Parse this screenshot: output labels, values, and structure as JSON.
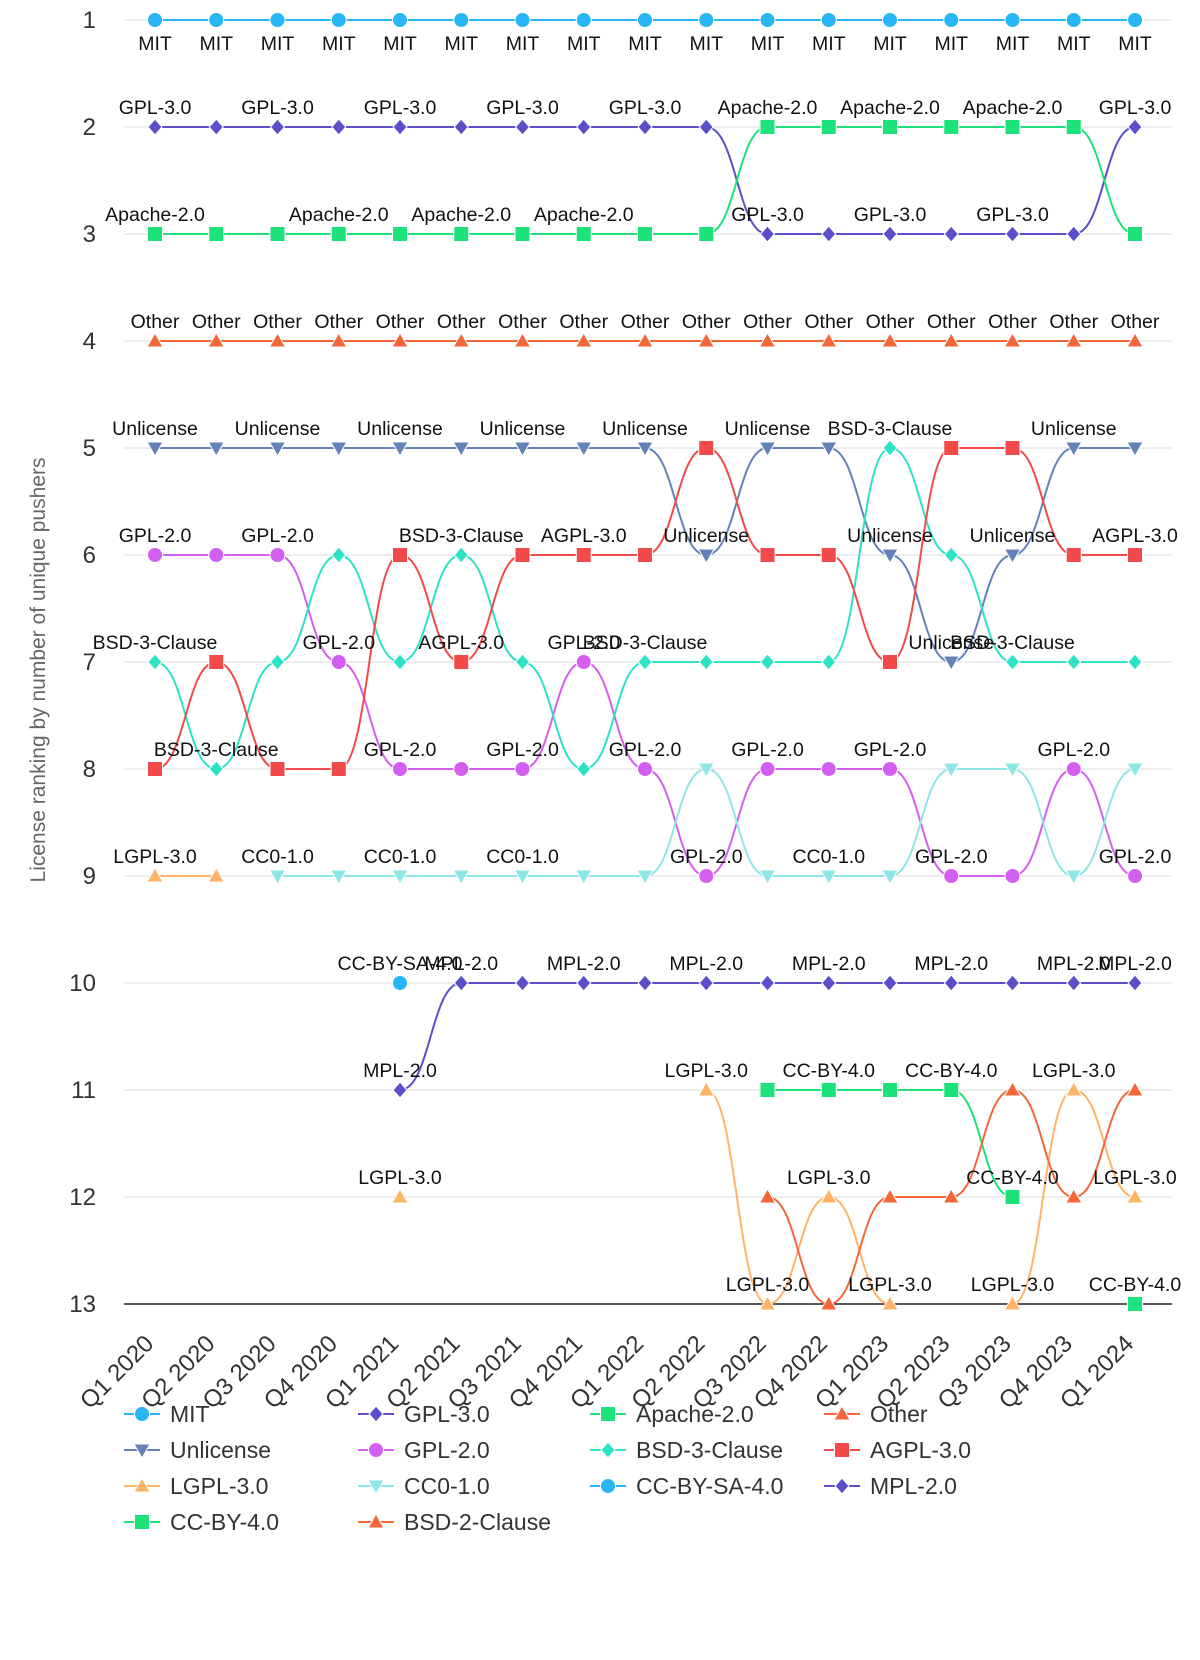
{
  "chart_data": {
    "type": "line",
    "subtype": "bump-chart",
    "title": "",
    "xlabel": "",
    "ylabel": "License ranking by number of unique pushers",
    "categories": [
      "Q1 2020",
      "Q2 2020",
      "Q3 2020",
      "Q4 2020",
      "Q1 2021",
      "Q2 2021",
      "Q3 2021",
      "Q4 2021",
      "Q1 2022",
      "Q2 2022",
      "Q3 2022",
      "Q4 2022",
      "Q1 2023",
      "Q2 2023",
      "Q3 2023",
      "Q4 2023",
      "Q1 2024"
    ],
    "y_ticks": [
      1,
      2,
      3,
      4,
      5,
      6,
      7,
      8,
      9,
      10,
      11,
      12,
      13
    ],
    "ylim": [
      1,
      13
    ],
    "y_reversed": true,
    "grid": true,
    "legend_position": "bottom",
    "series": [
      {
        "name": "MIT",
        "color": "#29b6f6",
        "marker": "circle",
        "values": [
          1,
          1,
          1,
          1,
          1,
          1,
          1,
          1,
          1,
          1,
          1,
          1,
          1,
          1,
          1,
          1,
          1
        ],
        "labels": [
          "MIT",
          "MIT",
          "MIT",
          "MIT",
          "MIT",
          "MIT",
          "MIT",
          "MIT",
          "MIT",
          "MIT",
          "MIT",
          "MIT",
          "MIT",
          "MIT",
          "MIT",
          "MIT",
          "MIT"
        ],
        "label_pos": "below"
      },
      {
        "name": "GPL-3.0",
        "color": "#5b4fc9",
        "marker": "diamond",
        "values": [
          2,
          2,
          2,
          2,
          2,
          2,
          2,
          2,
          2,
          2,
          3,
          3,
          3,
          3,
          3,
          3,
          2
        ],
        "labels": [
          "GPL-3.0",
          "",
          "GPL-3.0",
          "",
          "GPL-3.0",
          "",
          "GPL-3.0",
          "",
          "GPL-3.0",
          "",
          "GPL-3.0",
          "",
          "GPL-3.0",
          "",
          "GPL-3.0",
          "",
          "GPL-3.0"
        ],
        "label_pos": "above"
      },
      {
        "name": "Apache-2.0",
        "color": "#1de27a",
        "marker": "square",
        "values": [
          3,
          3,
          3,
          3,
          3,
          3,
          3,
          3,
          3,
          3,
          2,
          2,
          2,
          2,
          2,
          2,
          3
        ],
        "labels": [
          "Apache-2.0",
          "",
          "",
          "Apache-2.0",
          "",
          "Apache-2.0",
          "",
          "Apache-2.0",
          "",
          "",
          "Apache-2.0",
          "",
          "Apache-2.0",
          "",
          "Apache-2.0",
          "",
          ""
        ],
        "label_pos": "above"
      },
      {
        "name": "Other",
        "color": "#f4673a",
        "marker": "triangle",
        "values": [
          4,
          4,
          4,
          4,
          4,
          4,
          4,
          4,
          4,
          4,
          4,
          4,
          4,
          4,
          4,
          4,
          4
        ],
        "labels": [
          "Other",
          "Other",
          "Other",
          "Other",
          "Other",
          "Other",
          "Other",
          "Other",
          "Other",
          "Other",
          "Other",
          "Other",
          "Other",
          "Other",
          "Other",
          "Other",
          "Other"
        ],
        "label_pos": "above"
      },
      {
        "name": "Unlicense",
        "color": "#6482b8",
        "marker": "triangle-down",
        "values": [
          5,
          5,
          5,
          5,
          5,
          5,
          5,
          5,
          5,
          6,
          5,
          5,
          6,
          7,
          6,
          5,
          5
        ],
        "labels": [
          "Unlicense",
          "",
          "Unlicense",
          "",
          "Unlicense",
          "",
          "Unlicense",
          "",
          "Unlicense",
          "Unlicense",
          "Unlicense",
          "",
          "Unlicense",
          "Unlicense",
          "Unlicense",
          "Unlicense",
          ""
        ],
        "label_pos": "above"
      },
      {
        "name": "GPL-2.0",
        "color": "#d35ff0",
        "marker": "circle",
        "values": [
          6,
          6,
          6,
          7,
          8,
          8,
          8,
          7,
          8,
          9,
          8,
          8,
          8,
          9,
          9,
          8,
          9
        ],
        "labels": [
          "GPL-2.0",
          "",
          "GPL-2.0",
          "GPL-2.0",
          "GPL-2.0",
          "",
          "GPL-2.0",
          "GPL-2.0",
          "GPL-2.0",
          "GPL-2.0",
          "GPL-2.0",
          "",
          "GPL-2.0",
          "GPL-2.0",
          "",
          "GPL-2.0",
          "GPL-2.0"
        ],
        "label_pos": "above"
      },
      {
        "name": "BSD-3-Clause",
        "color": "#2ee3c5",
        "marker": "diamond",
        "values": [
          7,
          8,
          7,
          6,
          7,
          6,
          7,
          8,
          7,
          7,
          7,
          7,
          5,
          6,
          7,
          7,
          7
        ],
        "labels": [
          "BSD-3-Clause",
          "BSD-3-Clause",
          "",
          "",
          "",
          "BSD-3-Clause",
          "",
          "",
          "BSD-3-Clause",
          "",
          "",
          "",
          "BSD-3-Clause",
          "",
          "BSD-3-Clause",
          "",
          ""
        ],
        "label_pos": "above"
      },
      {
        "name": "AGPL-3.0",
        "color": "#f24a4a",
        "marker": "square",
        "values": [
          8,
          7,
          8,
          8,
          6,
          7,
          6,
          6,
          6,
          5,
          6,
          6,
          7,
          5,
          5,
          6,
          6
        ],
        "labels": [
          "",
          "",
          "",
          "",
          "",
          "AGPL-3.0",
          "",
          "AGPL-3.0",
          "",
          "",
          "",
          "",
          "",
          "",
          "",
          "",
          "AGPL-3.0"
        ],
        "label_pos": "above"
      },
      {
        "name": "LGPL-3.0",
        "color": "#ffb366",
        "marker": "triangle",
        "start_index": 0,
        "values": [
          9,
          9,
          null,
          null,
          12,
          null,
          null,
          null,
          null,
          11,
          13,
          12,
          13,
          null,
          13,
          11,
          12
        ],
        "labels": [
          "LGPL-3.0",
          "",
          "",
          "",
          "LGPL-3.0",
          "",
          "",
          "",
          "",
          "LGPL-3.0",
          "LGPL-3.0",
          "LGPL-3.0",
          "LGPL-3.0",
          "",
          "LGPL-3.0",
          "LGPL-3.0",
          "LGPL-3.0"
        ],
        "label_pos": "above"
      },
      {
        "name": "CC0-1.0",
        "color": "#8ee6e6",
        "marker": "triangle-down",
        "values": [
          null,
          null,
          9,
          9,
          9,
          9,
          9,
          9,
          9,
          8,
          9,
          9,
          9,
          8,
          8,
          9,
          8
        ],
        "labels": [
          "",
          "",
          "CC0-1.0",
          "",
          "CC0-1.0",
          "",
          "CC0-1.0",
          "",
          "",
          "",
          "",
          "CC0-1.0",
          "",
          "",
          "",
          "",
          ""
        ],
        "label_pos": "above"
      },
      {
        "name": "CC-BY-SA-4.0",
        "color": "#29b6f6",
        "marker": "circle",
        "values": [
          null,
          null,
          null,
          null,
          10,
          null,
          null,
          null,
          null,
          null,
          null,
          null,
          null,
          null,
          null,
          null,
          null
        ],
        "labels": [
          "",
          "",
          "",
          "",
          "CC-BY-SA-4.0",
          "",
          "",
          "",
          "",
          "",
          "",
          "",
          "",
          "",
          "",
          "",
          ""
        ],
        "label_pos": "above"
      },
      {
        "name": "MPL-2.0",
        "color": "#5b4fc9",
        "marker": "diamond",
        "values": [
          null,
          null,
          null,
          null,
          11,
          10,
          10,
          10,
          10,
          10,
          10,
          10,
          10,
          10,
          10,
          10,
          10
        ],
        "labels": [
          "",
          "",
          "",
          "",
          "MPL-2.0",
          "MPL-2.0",
          "",
          "MPL-2.0",
          "",
          "MPL-2.0",
          "",
          "MPL-2.0",
          "",
          "MPL-2.0",
          "",
          "MPL-2.0",
          "MPL-2.0"
        ],
        "label_pos": "above"
      },
      {
        "name": "CC-BY-4.0",
        "color": "#1de27a",
        "marker": "square",
        "values": [
          null,
          null,
          null,
          null,
          null,
          null,
          null,
          null,
          null,
          null,
          11,
          11,
          11,
          11,
          12,
          null,
          13
        ],
        "labels": [
          "",
          "",
          "",
          "",
          "",
          "",
          "",
          "",
          "",
          "",
          "",
          "CC-BY-4.0",
          "",
          "CC-BY-4.0",
          "CC-BY-4.0",
          "",
          "CC-BY-4.0"
        ],
        "label_pos": "above"
      },
      {
        "name": "BSD-2-Clause",
        "color": "#f4673a",
        "marker": "triangle",
        "values": [
          null,
          null,
          null,
          null,
          null,
          null,
          null,
          null,
          null,
          null,
          12,
          13,
          12,
          12,
          11,
          12,
          11
        ],
        "labels": [
          "",
          "",
          "",
          "",
          "",
          "",
          "",
          "",
          "",
          "",
          "",
          "",
          "",
          "",
          "",
          "",
          ""
        ],
        "label_pos": "above"
      }
    ]
  }
}
